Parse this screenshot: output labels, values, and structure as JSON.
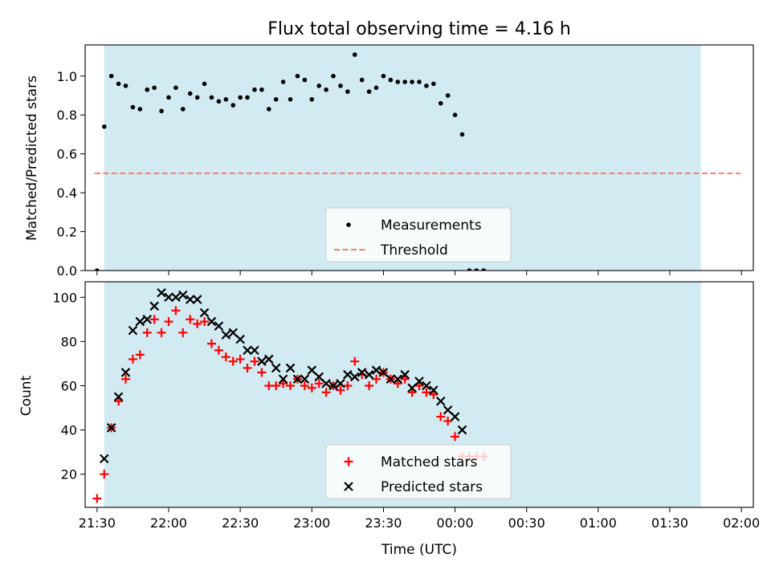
{
  "chart_data": [
    {
      "type": "scatter",
      "title": "Flux total observing time = 4.16 h",
      "ylabel": "Matched/Predicted stars",
      "xlabel": "",
      "ylim": [
        0,
        1.16
      ],
      "yticks": [
        0.0,
        0.2,
        0.4,
        0.6,
        0.8,
        1.0
      ],
      "ytick_labels": [
        "0.0",
        "0.2",
        "0.4",
        "0.6",
        "0.8",
        "1.0"
      ],
      "shaded_interval": {
        "from": "21:33",
        "to": "01:43",
        "color": "#add8e6"
      },
      "threshold": {
        "name": "Threshold",
        "value": 0.5,
        "style": "dashed",
        "color": "#f08080"
      },
      "legend_position": "lower center",
      "series": [
        {
          "name": "Measurements",
          "marker": "dot",
          "color": "#000000",
          "points": [
            [
              "21:30",
              0.0
            ],
            [
              "21:33",
              0.74
            ],
            [
              "21:36",
              1.0
            ],
            [
              "21:39",
              0.96
            ],
            [
              "21:42",
              0.95
            ],
            [
              "21:45",
              0.84
            ],
            [
              "21:48",
              0.83
            ],
            [
              "21:51",
              0.93
            ],
            [
              "21:54",
              0.94
            ],
            [
              "21:57",
              0.82
            ],
            [
              "22:00",
              0.89
            ],
            [
              "22:03",
              0.94
            ],
            [
              "22:06",
              0.83
            ],
            [
              "22:09",
              0.91
            ],
            [
              "22:12",
              0.89
            ],
            [
              "22:15",
              0.96
            ],
            [
              "22:18",
              0.89
            ],
            [
              "22:21",
              0.87
            ],
            [
              "22:24",
              0.88
            ],
            [
              "22:27",
              0.85
            ],
            [
              "22:30",
              0.89
            ],
            [
              "22:33",
              0.89
            ],
            [
              "22:36",
              0.93
            ],
            [
              "22:39",
              0.93
            ],
            [
              "22:42",
              0.83
            ],
            [
              "22:45",
              0.88
            ],
            [
              "22:48",
              0.97
            ],
            [
              "22:51",
              0.88
            ],
            [
              "22:54",
              1.0
            ],
            [
              "22:57",
              0.98
            ],
            [
              "23:00",
              0.88
            ],
            [
              "23:03",
              0.95
            ],
            [
              "23:06",
              0.93
            ],
            [
              "23:09",
              1.0
            ],
            [
              "23:12",
              0.95
            ],
            [
              "23:15",
              0.92
            ],
            [
              "23:18",
              1.11
            ],
            [
              "23:21",
              0.98
            ],
            [
              "23:24",
              0.92
            ],
            [
              "23:27",
              0.94
            ],
            [
              "23:30",
              1.0
            ],
            [
              "23:33",
              0.98
            ],
            [
              "23:36",
              0.97
            ],
            [
              "23:39",
              0.97
            ],
            [
              "23:42",
              0.97
            ],
            [
              "23:45",
              0.97
            ],
            [
              "23:48",
              0.95
            ],
            [
              "23:51",
              0.96
            ],
            [
              "23:54",
              0.86
            ],
            [
              "23:57",
              0.9
            ],
            [
              "00:00",
              0.8
            ],
            [
              "00:03",
              0.7
            ],
            [
              "00:06",
              0.0
            ],
            [
              "00:09",
              0.0
            ],
            [
              "00:12",
              0.0
            ]
          ]
        }
      ]
    },
    {
      "type": "scatter",
      "title": "",
      "ylabel": "Count",
      "xlabel": "Time (UTC)",
      "ylim": [
        5,
        107
      ],
      "yticks": [
        20,
        40,
        60,
        80,
        100
      ],
      "ytick_labels": [
        "20",
        "40",
        "60",
        "80",
        "100"
      ],
      "xlim": [
        "21:25",
        "02:05"
      ],
      "xticks": [
        "21:30",
        "22:00",
        "22:30",
        "23:00",
        "23:30",
        "00:00",
        "00:30",
        "01:00",
        "01:30",
        "02:00"
      ],
      "shaded_interval": {
        "from": "21:33",
        "to": "01:43",
        "color": "#add8e6"
      },
      "legend_position": "lower center",
      "series": [
        {
          "name": "Matched stars",
          "marker": "plus",
          "color": "#ff0000",
          "points": [
            [
              "21:30",
              9
            ],
            [
              "21:33",
              20
            ],
            [
              "21:36",
              41
            ],
            [
              "21:39",
              53
            ],
            [
              "21:42",
              63
            ],
            [
              "21:45",
              72
            ],
            [
              "21:48",
              74
            ],
            [
              "21:51",
              84
            ],
            [
              "21:54",
              90
            ],
            [
              "21:57",
              84
            ],
            [
              "22:00",
              89
            ],
            [
              "22:03",
              94
            ],
            [
              "22:06",
              84
            ],
            [
              "22:09",
              90
            ],
            [
              "22:12",
              88
            ],
            [
              "22:15",
              89
            ],
            [
              "22:18",
              79
            ],
            [
              "22:21",
              76
            ],
            [
              "22:24",
              73
            ],
            [
              "22:27",
              71
            ],
            [
              "22:30",
              72
            ],
            [
              "22:33",
              68
            ],
            [
              "22:36",
              71
            ],
            [
              "22:39",
              66
            ],
            [
              "22:42",
              60
            ],
            [
              "22:45",
              60
            ],
            [
              "22:48",
              61
            ],
            [
              "22:51",
              60
            ],
            [
              "22:54",
              63
            ],
            [
              "22:57",
              60
            ],
            [
              "23:00",
              59
            ],
            [
              "23:03",
              61
            ],
            [
              "23:06",
              57
            ],
            [
              "23:09",
              60
            ],
            [
              "23:12",
              58
            ],
            [
              "23:15",
              60
            ],
            [
              "23:18",
              71
            ],
            [
              "23:21",
              65
            ],
            [
              "23:24",
              60
            ],
            [
              "23:27",
              63
            ],
            [
              "23:30",
              66
            ],
            [
              "23:33",
              63
            ],
            [
              "23:36",
              61
            ],
            [
              "23:39",
              63
            ],
            [
              "23:42",
              57
            ],
            [
              "23:45",
              60
            ],
            [
              "23:48",
              57
            ],
            [
              "23:51",
              56
            ],
            [
              "23:54",
              46
            ],
            [
              "23:57",
              44
            ],
            [
              "00:00",
              37
            ],
            [
              "00:03",
              28
            ],
            [
              "00:06",
              28
            ],
            [
              "00:09",
              28
            ],
            [
              "00:12",
              28
            ]
          ]
        },
        {
          "name": "Predicted stars",
          "marker": "x",
          "color": "#000000",
          "points": [
            [
              "21:33",
              27
            ],
            [
              "21:36",
              41
            ],
            [
              "21:39",
              55
            ],
            [
              "21:42",
              66
            ],
            [
              "21:45",
              85
            ],
            [
              "21:48",
              89
            ],
            [
              "21:51",
              90
            ],
            [
              "21:54",
              96
            ],
            [
              "21:57",
              102
            ],
            [
              "22:00",
              100
            ],
            [
              "22:03",
              100
            ],
            [
              "22:06",
              101
            ],
            [
              "22:09",
              99
            ],
            [
              "22:12",
              99
            ],
            [
              "22:15",
              93
            ],
            [
              "22:18",
              89
            ],
            [
              "22:21",
              87
            ],
            [
              "22:24",
              83
            ],
            [
              "22:27",
              84
            ],
            [
              "22:30",
              81
            ],
            [
              "22:33",
              76
            ],
            [
              "22:36",
              76
            ],
            [
              "22:39",
              71
            ],
            [
              "22:42",
              72
            ],
            [
              "22:45",
              68
            ],
            [
              "22:48",
              63
            ],
            [
              "22:51",
              68
            ],
            [
              "22:54",
              63
            ],
            [
              "22:57",
              63
            ],
            [
              "23:00",
              67
            ],
            [
              "23:03",
              64
            ],
            [
              "23:06",
              61
            ],
            [
              "23:09",
              60
            ],
            [
              "23:12",
              61
            ],
            [
              "23:15",
              65
            ],
            [
              "23:18",
              64
            ],
            [
              "23:21",
              66
            ],
            [
              "23:24",
              65
            ],
            [
              "23:27",
              67
            ],
            [
              "23:30",
              66
            ],
            [
              "23:33",
              63
            ],
            [
              "23:36",
              63
            ],
            [
              "23:39",
              65
            ],
            [
              "23:42",
              59
            ],
            [
              "23:45",
              62
            ],
            [
              "23:48",
              60
            ],
            [
              "23:51",
              58
            ],
            [
              "23:54",
              53
            ],
            [
              "23:57",
              49
            ],
            [
              "00:00",
              46
            ],
            [
              "00:03",
              40
            ]
          ]
        }
      ]
    }
  ]
}
